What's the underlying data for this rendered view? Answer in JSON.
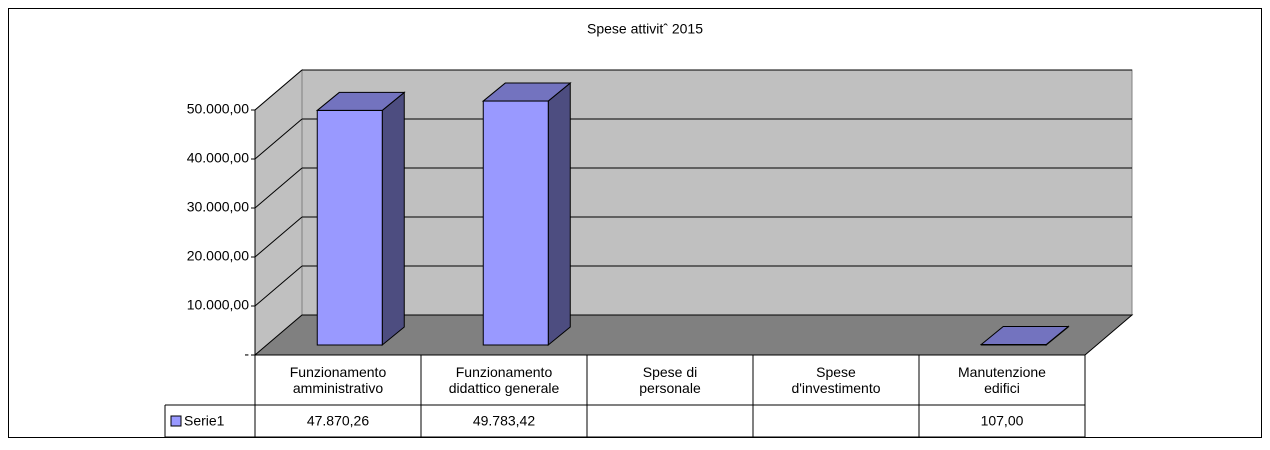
{
  "chart_data": {
    "type": "bar3d",
    "title": "Spese attivitˆ 2015",
    "categories": [
      "Funzionamento amministrativo",
      "Funzionamento didattico generale",
      "Spese di personale",
      "Spese d'investimento",
      "Manutenzione edifici"
    ],
    "series": [
      {
        "name": "Serie1",
        "color": "#9999ff",
        "values": [
          47870.26,
          49783.42,
          null,
          null,
          107
        ],
        "value_labels": [
          "47.870,26",
          "49.783,42",
          null,
          null,
          "107,00"
        ]
      }
    ],
    "ylim": [
      0,
      50000
    ],
    "yticks": [
      {
        "value": 0,
        "label": "-"
      },
      {
        "value": 10000,
        "label": "10.000,00"
      },
      {
        "value": 20000,
        "label": "20.000,00"
      },
      {
        "value": 30000,
        "label": "30.000,00"
      },
      {
        "value": 40000,
        "label": "40.000,00"
      },
      {
        "value": 50000,
        "label": "50.000,00"
      }
    ],
    "grid": true,
    "legend": "table"
  }
}
